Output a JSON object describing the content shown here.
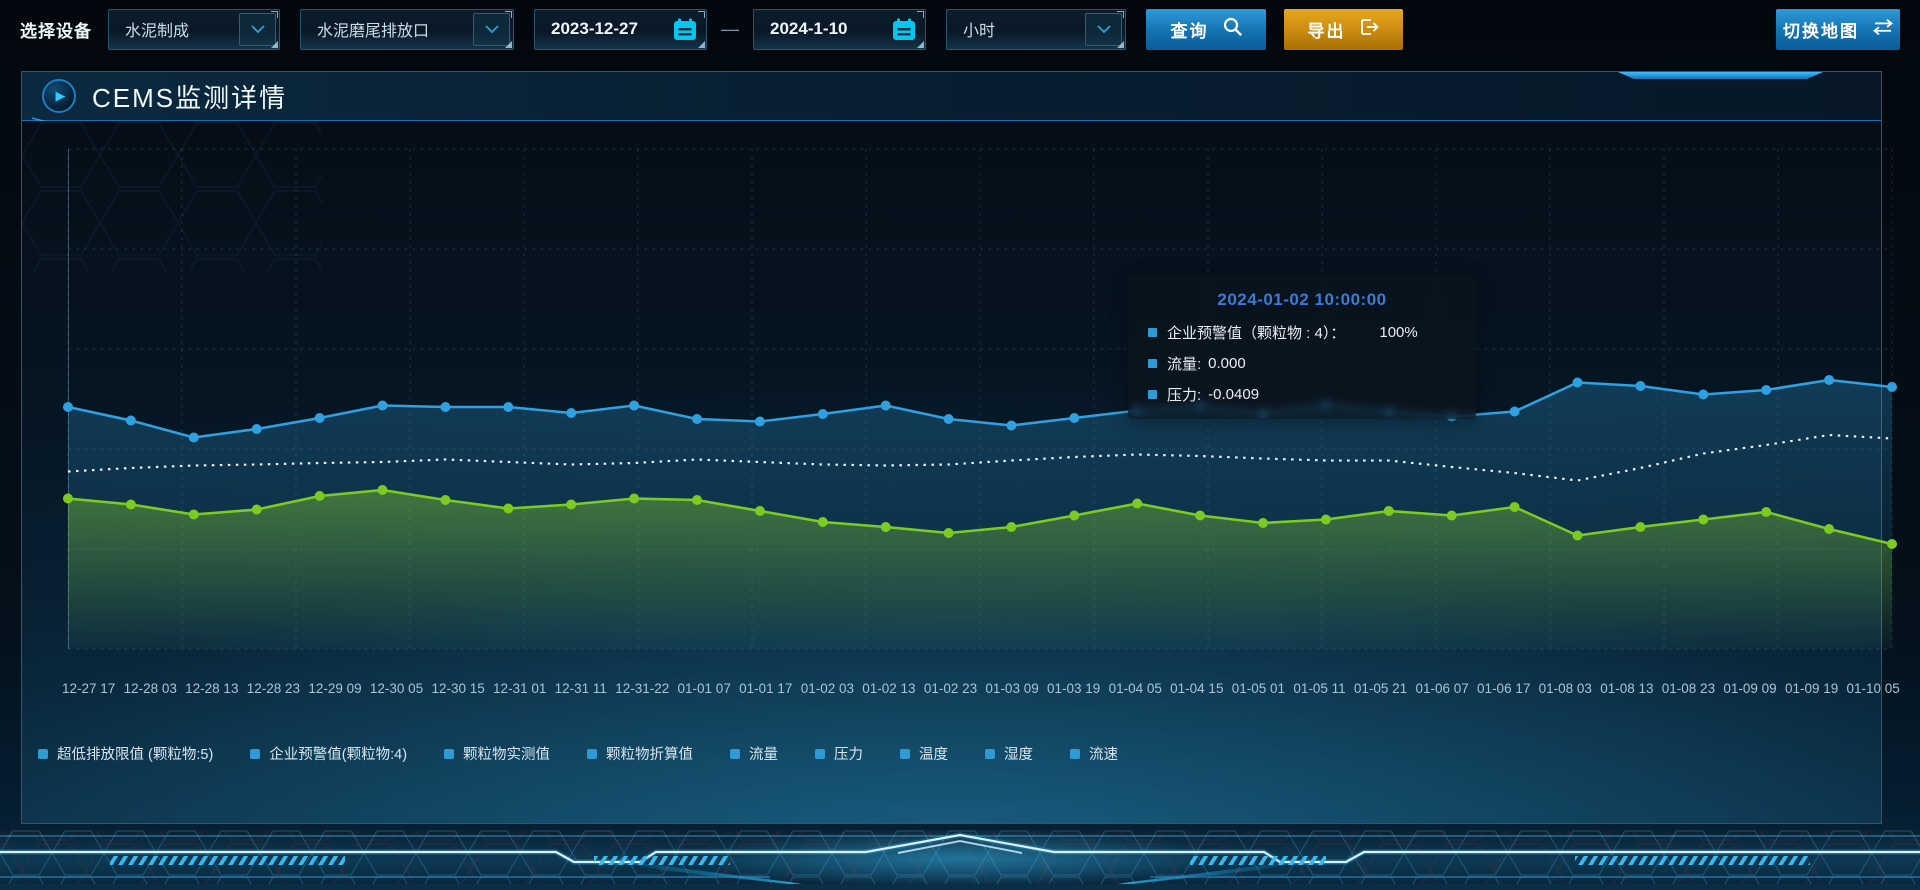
{
  "toolbar": {
    "device_label": "选择设备",
    "device_type": "水泥制成",
    "outlet": "水泥磨尾排放口",
    "date_start": "2023-12-27",
    "date_separator": "—",
    "date_end": "2024-1-10",
    "interval": "小时",
    "query_button": "查询",
    "export_button": "导出",
    "switch_map_button": "切换地图"
  },
  "panel": {
    "title": "CEMS监测详情"
  },
  "colors": {
    "accent_blue": "#2fa0e0",
    "button_orange": "#d9941c",
    "legend_marker": "#2e9bd6",
    "tooltip_title": "#3a7bd5",
    "series_blue": "#2fa0e0",
    "series_green": "#7ccb22",
    "series_white": "#e8f0f5"
  },
  "chart_data": {
    "type": "line",
    "grid": "dashed",
    "legend_position": "bottom",
    "xlabel": "",
    "ylabel": "",
    "ylim": [
      0,
      100
    ],
    "x": [
      "12-27 17",
      "12-28 03",
      "12-28 13",
      "12-28 23",
      "12-29 09",
      "12-30 05",
      "12-30 15",
      "12-31 01",
      "12-31 11",
      "12-31-22",
      "01-01 07",
      "01-01 17",
      "01-02 03",
      "01-02 13",
      "01-02 23",
      "01-03 09",
      "01-03 19",
      "01-04 05",
      "01-04 15",
      "01-05 01",
      "01-05 11",
      "01-05 21",
      "01-06 07",
      "01-06 17",
      "01-08 03",
      "01-08 13",
      "01-08 23",
      "01-09 09",
      "01-09 19",
      "01-10 05"
    ],
    "series": [
      {
        "name": "blue-line-with-dots",
        "color": "#2fa0e0",
        "style": "solid",
        "markers": true,
        "area": "blue",
        "values": [
          48.4,
          45.7,
          42.3,
          44.0,
          46.2,
          48.7,
          48.4,
          48.4,
          47.2,
          48.7,
          46.0,
          45.5,
          47.0,
          48.7,
          46.0,
          44.7,
          46.2,
          47.7,
          48.7,
          47.2,
          48.9,
          47.5,
          46.5,
          47.5,
          53.3,
          52.6,
          50.9,
          51.8,
          53.8,
          52.4
        ]
      },
      {
        "name": "white-dotted-line",
        "color": "#e8f0f5",
        "style": "dotted",
        "markers": false,
        "area": null,
        "values": [
          35.5,
          36.2,
          36.7,
          36.9,
          37.2,
          37.4,
          37.9,
          37.4,
          36.9,
          37.2,
          37.9,
          37.4,
          36.9,
          36.7,
          36.9,
          37.7,
          38.4,
          38.9,
          38.6,
          38.1,
          37.7,
          37.7,
          36.4,
          35.2,
          33.7,
          36.2,
          39.1,
          40.8,
          42.8,
          42.1
        ]
      },
      {
        "name": "green-line-with-dots",
        "color": "#7ccb22",
        "style": "solid",
        "markers": true,
        "area": "green",
        "values": [
          30.1,
          28.9,
          26.9,
          27.9,
          30.6,
          31.8,
          29.8,
          28.1,
          28.9,
          30.1,
          29.8,
          27.6,
          25.4,
          24.4,
          23.2,
          24.4,
          26.7,
          29.1,
          26.7,
          25.2,
          25.9,
          27.6,
          26.7,
          28.4,
          22.7,
          24.4,
          25.9,
          27.4,
          24.0,
          21.0
        ]
      }
    ],
    "legend": [
      "超低排放限值 (颗粒物:5)",
      "企业预警值(颗粒物:4)",
      "颗粒物实测值",
      "颗粒物折算值",
      "流量",
      "压力",
      "温度",
      "湿度",
      "流速"
    ],
    "tooltip": {
      "title": "2024-01-02 10:00:00",
      "rows": [
        {
          "label": "企业预警值（颗粒物 : 4）：",
          "value": "100%"
        },
        {
          "label": "流量:",
          "value": "0.000"
        },
        {
          "label": "压力:",
          "value": "-0.0409"
        }
      ]
    }
  }
}
